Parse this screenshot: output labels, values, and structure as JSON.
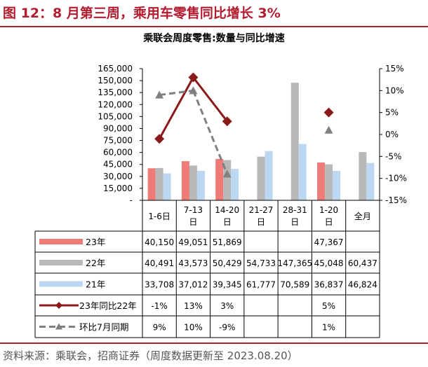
{
  "figure_title": "图 12：8 月第三周，乘用车零售同比增长 3%",
  "source": "资料来源：乘联会，招商证券（周度数据更新至 2023.08.20）",
  "chart_data": {
    "type": "bar",
    "title": "乘联会周度零售:数量与同比增速",
    "categories": [
      "1-6日",
      "7-13\n日",
      "14-20\n日",
      "21-27\n日",
      "28-31\n日",
      "1-20\n日",
      "全月"
    ],
    "y_ticks": [
      "-",
      "15,000",
      "30,000",
      "45,000",
      "60,000",
      "75,000",
      "90,000",
      "105,000",
      "120,000",
      "135,000",
      "150,000",
      "165,000"
    ],
    "ylim": [
      0,
      165000
    ],
    "y2_ticks": [
      "-15%",
      "-10%",
      "-5%",
      "0%",
      "5%",
      "10%",
      "15%"
    ],
    "y2lim": [
      -15,
      15
    ],
    "grid": false,
    "bar_series": [
      {
        "name": "23年",
        "color": "#ef7b78",
        "values": [
          40150,
          49051,
          51869,
          null,
          null,
          47367,
          null
        ],
        "labels": [
          "40,150",
          "49,051",
          "51,869",
          "",
          "",
          "47,367",
          ""
        ]
      },
      {
        "name": "22年",
        "color": "#b8b8b8",
        "values": [
          40491,
          43573,
          50429,
          54733,
          147365,
          45048,
          60437
        ],
        "labels": [
          "40,491",
          "43,573",
          "50,429",
          "54,733",
          "147,365",
          "45,048",
          "60,437"
        ]
      },
      {
        "name": "21年",
        "color": "#bcd7f1",
        "values": [
          33708,
          37012,
          39345,
          61777,
          70589,
          36837,
          46824
        ],
        "labels": [
          "33,708",
          "37,012",
          "39,345",
          "61,777",
          "70,589",
          "36,837",
          "46,824"
        ]
      }
    ],
    "line_series": [
      {
        "name": "23年同比22年",
        "color": "#8b1a1a",
        "style": "solid",
        "marker": "diamond",
        "values": [
          -1,
          13,
          3,
          null,
          null,
          5,
          null
        ],
        "labels": [
          "-1%",
          "13%",
          "3%",
          "",
          "",
          "5%",
          ""
        ]
      },
      {
        "name": "环比7月同期",
        "color": "#808080",
        "style": "dashed",
        "marker": "triangle",
        "values": [
          9,
          10,
          -9,
          null,
          null,
          1,
          null
        ],
        "labels": [
          "9%",
          "10%",
          "-9%",
          "",
          "",
          "1%",
          ""
        ]
      }
    ]
  }
}
